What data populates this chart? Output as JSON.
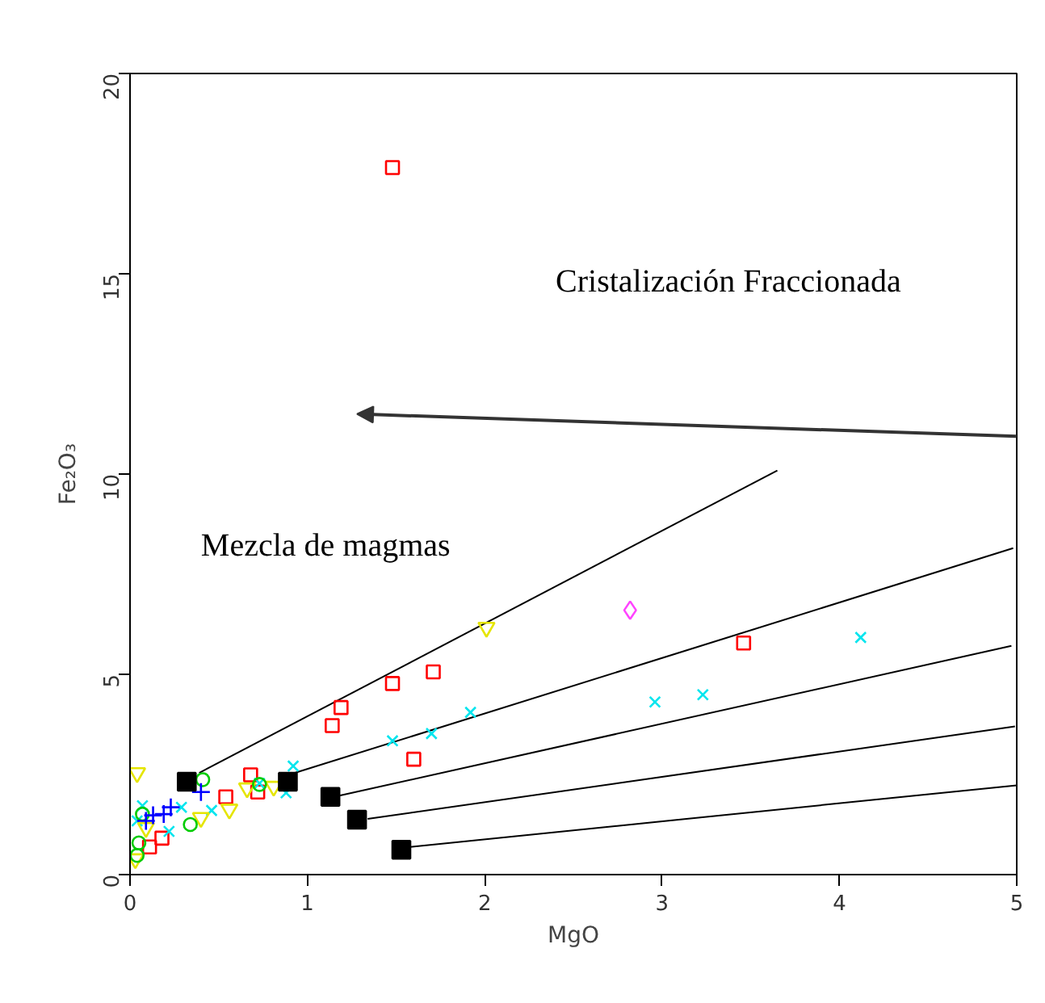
{
  "chart_data": {
    "type": "scatter",
    "xlabel": "MgO",
    "ylabel": "Fe₂O₃",
    "xlim": [
      0,
      5
    ],
    "ylim": [
      0,
      20
    ],
    "xticks": [
      0,
      1,
      2,
      3,
      4,
      5
    ],
    "yticks": [
      0,
      5,
      10,
      15,
      20
    ],
    "grid": false,
    "annotations": [
      "Mezcla de magmas",
      "Cristalización Fraccionada"
    ],
    "series": [
      {
        "type": "line",
        "color": "#000000",
        "marker": "none",
        "x": [
          0.39,
          3.65
        ],
        "values": [
          2.54,
          10.09
        ]
      },
      {
        "type": "line",
        "color": "#000000",
        "marker": "none",
        "x": [
          0.93,
          4.98
        ],
        "values": [
          2.54,
          8.15
        ]
      },
      {
        "type": "line",
        "color": "#000000",
        "marker": "none",
        "x": [
          1.18,
          4.97
        ],
        "values": [
          1.97,
          5.71
        ]
      },
      {
        "type": "line",
        "color": "#000000",
        "marker": "none",
        "x": [
          1.34,
          4.99
        ],
        "values": [
          1.39,
          3.7
        ]
      },
      {
        "type": "line",
        "color": "#000000",
        "marker": "none",
        "x": [
          1.58,
          5.0
        ],
        "values": [
          0.69,
          2.23
        ]
      },
      {
        "color": "#ff0000",
        "marker": "square",
        "x": [
          1.48,
          1.14,
          1.19,
          1.48,
          1.71,
          1.6,
          3.46,
          0.68,
          0.72,
          0.54,
          0.18,
          0.11
        ],
        "values": [
          17.65,
          3.72,
          4.17,
          4.77,
          5.06,
          2.88,
          5.78,
          2.49,
          2.06,
          1.94,
          0.91,
          0.69
        ]
      },
      {
        "color": "#00e5ee",
        "marker": "x",
        "x": [
          4.12,
          2.96,
          3.23,
          1.92,
          1.7,
          1.48,
          0.92,
          0.88,
          0.73,
          0.46,
          0.29,
          0.22,
          0.07,
          0.04
        ],
        "values": [
          5.92,
          4.31,
          4.49,
          4.05,
          3.52,
          3.34,
          2.71,
          2.04,
          2.28,
          1.6,
          1.68,
          1.08,
          1.72,
          1.34
        ]
      },
      {
        "color": "#ff44ff",
        "marker": "diamond",
        "x": [
          2.82
        ],
        "values": [
          6.6
        ]
      },
      {
        "color": "#e5e500",
        "marker": "triangle_down",
        "x": [
          2.01,
          0.04,
          0.56,
          0.4,
          0.66,
          0.81,
          0.09,
          0.03
        ],
        "values": [
          6.17,
          2.54,
          1.63,
          1.42,
          2.16,
          2.2,
          1.17,
          0.39
        ]
      },
      {
        "color": "#00cc00",
        "marker": "circle",
        "x": [
          0.41,
          0.34,
          0.07,
          0.05,
          0.04,
          0.73
        ],
        "values": [
          2.37,
          1.25,
          1.51,
          0.79,
          0.48,
          2.25
        ]
      },
      {
        "color": "#0000ff",
        "marker": "cross",
        "x": [
          0.4,
          0.23,
          0.19,
          0.13,
          0.09
        ],
        "values": [
          2.06,
          1.68,
          1.51,
          1.48,
          1.34
        ]
      },
      {
        "type": "scatter",
        "color": "#000000",
        "marker": "square",
        "x": [
          0.32,
          0.89,
          1.13,
          1.28,
          1.53
        ],
        "values": [
          2.32,
          2.32,
          1.94,
          1.37,
          0.62
        ]
      }
    ]
  }
}
